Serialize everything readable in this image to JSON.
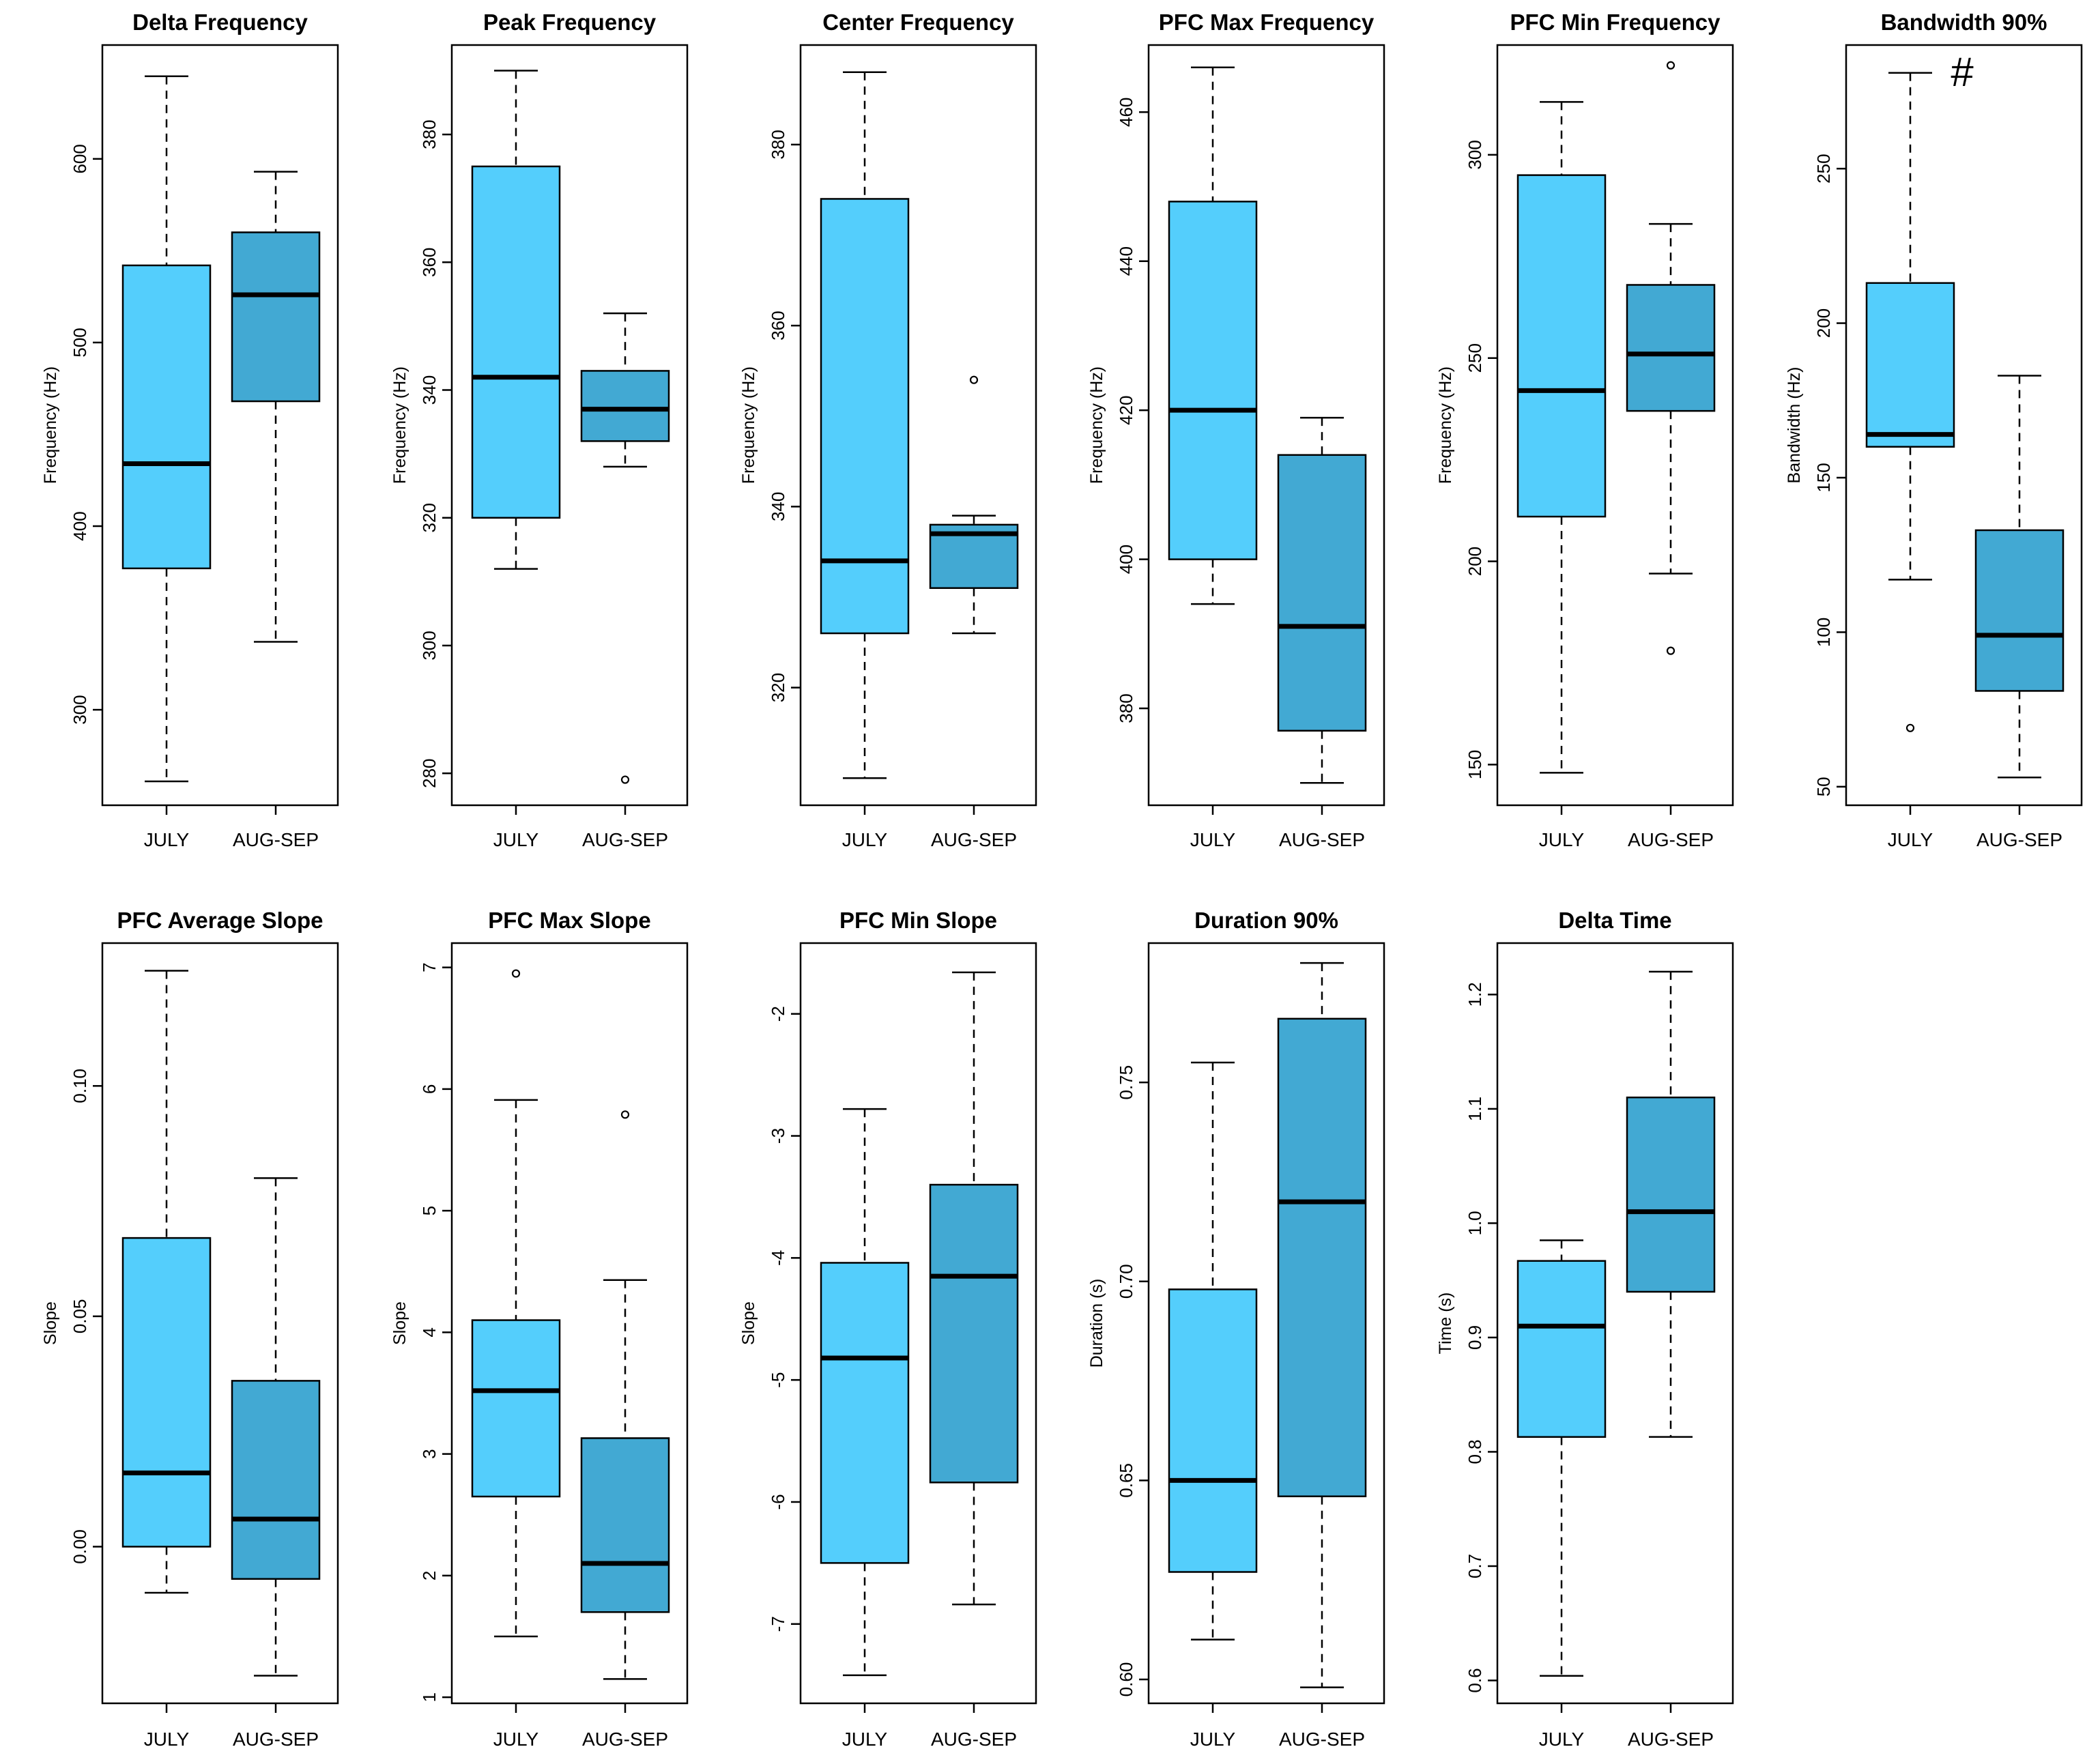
{
  "colors": {
    "july_box": "#54cefc",
    "augsep_box": "#42a9d3",
    "line": "#000000",
    "background": "#ffffff"
  },
  "chart_data": [
    {
      "type": "box",
      "title": "Delta Frequency",
      "ylabel": "Frequency (Hz)",
      "ylim": [
        248,
        662
      ],
      "yticks": [
        300,
        400,
        500,
        600
      ],
      "categories": [
        "JULY",
        "AUG-SEP"
      ],
      "boxes": [
        {
          "group": "JULY",
          "min": 261,
          "q1": 377,
          "median": 434,
          "q3": 542,
          "max": 645,
          "outliers": []
        },
        {
          "group": "AUG-SEP",
          "min": 337,
          "q1": 468,
          "median": 526,
          "q3": 560,
          "max": 593,
          "outliers": []
        }
      ]
    },
    {
      "type": "box",
      "title": "Peak Frequency",
      "ylabel": "Frequency (Hz)",
      "ylim": [
        275,
        394
      ],
      "yticks": [
        280,
        300,
        320,
        340,
        360,
        380
      ],
      "categories": [
        "JULY",
        "AUG-SEP"
      ],
      "boxes": [
        {
          "group": "JULY",
          "min": 312,
          "q1": 320,
          "median": 342,
          "q3": 375,
          "max": 390,
          "outliers": []
        },
        {
          "group": "AUG-SEP",
          "min": 328,
          "q1": 332,
          "median": 337,
          "q3": 343,
          "max": 352,
          "outliers": [
            279
          ]
        }
      ]
    },
    {
      "type": "box",
      "title": "Center Frequency",
      "ylabel": "Frequency (Hz)",
      "ylim": [
        307,
        391
      ],
      "yticks": [
        320,
        340,
        360,
        380
      ],
      "categories": [
        "JULY",
        "AUG-SEP"
      ],
      "boxes": [
        {
          "group": "JULY",
          "min": 310,
          "q1": 326,
          "median": 334,
          "q3": 374,
          "max": 388,
          "outliers": []
        },
        {
          "group": "AUG-SEP",
          "min": 326,
          "q1": 331,
          "median": 337,
          "q3": 338,
          "max": 339,
          "outliers": [
            354
          ]
        }
      ]
    },
    {
      "type": "box",
      "title": "PFC Max Frequency",
      "ylabel": "Frequency (Hz)",
      "ylim": [
        367,
        469
      ],
      "yticks": [
        380,
        400,
        420,
        440,
        460
      ],
      "categories": [
        "JULY",
        "AUG-SEP"
      ],
      "boxes": [
        {
          "group": "JULY",
          "min": 394,
          "q1": 400,
          "median": 420,
          "q3": 448,
          "max": 466,
          "outliers": []
        },
        {
          "group": "AUG-SEP",
          "min": 370,
          "q1": 377,
          "median": 391,
          "q3": 414,
          "max": 419,
          "outliers": []
        }
      ]
    },
    {
      "type": "box",
      "title": "PFC Min Frequency",
      "ylabel": "Frequency (Hz)",
      "ylim": [
        140,
        327
      ],
      "yticks": [
        150,
        200,
        250,
        300
      ],
      "categories": [
        "JULY",
        "AUG-SEP"
      ],
      "boxes": [
        {
          "group": "JULY",
          "min": 148,
          "q1": 211,
          "median": 242,
          "q3": 295,
          "max": 313,
          "outliers": []
        },
        {
          "group": "AUG-SEP",
          "min": 197,
          "q1": 237,
          "median": 251,
          "q3": 268,
          "max": 283,
          "outliers": [
            178,
            322
          ]
        }
      ]
    },
    {
      "type": "box",
      "title": "Bandwidth 90%",
      "ylabel": "Bandwidth (Hz)",
      "ylim": [
        44,
        290
      ],
      "yticks": [
        50,
        100,
        150,
        200,
        250
      ],
      "categories": [
        "JULY",
        "AUG-SEP"
      ],
      "annotation": "#",
      "boxes": [
        {
          "group": "JULY",
          "min": 117,
          "q1": 160,
          "median": 164,
          "q3": 213,
          "max": 281,
          "outliers": [
            69
          ]
        },
        {
          "group": "AUG-SEP",
          "min": 53,
          "q1": 81,
          "median": 99,
          "q3": 133,
          "max": 183,
          "outliers": []
        }
      ]
    },
    {
      "type": "box",
      "title": "PFC Average Slope",
      "ylabel": "Slope",
      "ylim": [
        -0.034,
        0.131
      ],
      "yticks": [
        0.0,
        0.05,
        0.1
      ],
      "yticklabels": [
        "0.00",
        "0.05",
        "0.10"
      ],
      "categories": [
        "JULY",
        "AUG-SEP"
      ],
      "boxes": [
        {
          "group": "JULY",
          "min": -0.01,
          "q1": 0.0,
          "median": 0.016,
          "q3": 0.067,
          "max": 0.125,
          "outliers": []
        },
        {
          "group": "AUG-SEP",
          "min": -0.028,
          "q1": -0.007,
          "median": 0.006,
          "q3": 0.036,
          "max": 0.08,
          "outliers": []
        }
      ]
    },
    {
      "type": "box",
      "title": "PFC Max Slope",
      "ylabel": "Slope",
      "ylim": [
        0.95,
        7.2
      ],
      "yticks": [
        1,
        2,
        3,
        4,
        5,
        6,
        7
      ],
      "categories": [
        "JULY",
        "AUG-SEP"
      ],
      "boxes": [
        {
          "group": "JULY",
          "min": 1.5,
          "q1": 2.65,
          "median": 3.52,
          "q3": 4.1,
          "max": 5.91,
          "outliers": [
            6.95
          ]
        },
        {
          "group": "AUG-SEP",
          "min": 1.15,
          "q1": 1.7,
          "median": 2.1,
          "q3": 3.13,
          "max": 4.43,
          "outliers": [
            5.79
          ]
        }
      ]
    },
    {
      "type": "box",
      "title": "PFC Min Slope",
      "ylabel": "Slope",
      "ylim": [
        -7.65,
        -1.42
      ],
      "yticks": [
        -7,
        -6,
        -5,
        -4,
        -3,
        -2
      ],
      "categories": [
        "JULY",
        "AUG-SEP"
      ],
      "boxes": [
        {
          "group": "JULY",
          "min": -7.42,
          "q1": -6.5,
          "median": -4.82,
          "q3": -4.04,
          "max": -2.78,
          "outliers": []
        },
        {
          "group": "AUG-SEP",
          "min": -6.84,
          "q1": -5.84,
          "median": -4.15,
          "q3": -3.4,
          "max": -1.66,
          "outliers": []
        }
      ]
    },
    {
      "type": "box",
      "title": "Duration 90%",
      "ylabel": "Duration (s)",
      "ylim": [
        0.594,
        0.785
      ],
      "yticks": [
        0.6,
        0.65,
        0.7,
        0.75
      ],
      "yticklabels": [
        "0.60",
        "0.65",
        "0.70",
        "0.75"
      ],
      "categories": [
        "JULY",
        "AUG-SEP"
      ],
      "boxes": [
        {
          "group": "JULY",
          "min": 0.61,
          "q1": 0.627,
          "median": 0.65,
          "q3": 0.698,
          "max": 0.755,
          "outliers": []
        },
        {
          "group": "AUG-SEP",
          "min": 0.598,
          "q1": 0.646,
          "median": 0.72,
          "q3": 0.766,
          "max": 0.78,
          "outliers": []
        }
      ]
    },
    {
      "type": "box",
      "title": "Delta Time",
      "ylabel": "Time (s)",
      "ylim": [
        0.58,
        1.245
      ],
      "yticks": [
        0.6,
        0.7,
        0.8,
        0.9,
        1.0,
        1.1,
        1.2
      ],
      "yticklabels": [
        "0.6",
        "0.7",
        "0.8",
        "0.9",
        "1.0",
        "1.1",
        "1.2"
      ],
      "categories": [
        "JULY",
        "AUG-SEP"
      ],
      "boxes": [
        {
          "group": "JULY",
          "min": 0.604,
          "q1": 0.813,
          "median": 0.91,
          "q3": 0.967,
          "max": 0.985,
          "outliers": []
        },
        {
          "group": "AUG-SEP",
          "min": 0.813,
          "q1": 0.94,
          "median": 1.01,
          "q3": 1.11,
          "max": 1.22,
          "outliers": []
        }
      ]
    }
  ]
}
